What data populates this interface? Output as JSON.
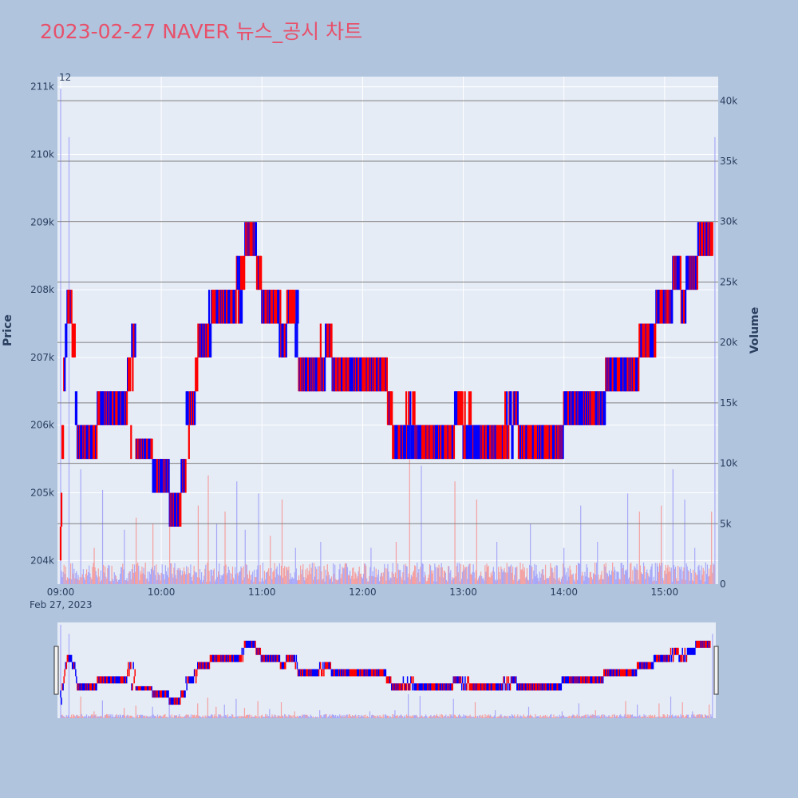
{
  "colors": {
    "background": "#b0c4de",
    "plot_bg": "#e5ecf6",
    "up": "#ff0000",
    "down": "#0000ff",
    "volume_up": "#f4a0a0",
    "volume_down": "#a8a8f8",
    "title": "#e8506a"
  },
  "chart_data": {
    "type": "candlestick",
    "title": "2023-02-27 NAVER 뉴스_공시 차트",
    "ylabel": "Price",
    "y2label": "Volume",
    "x_tick_labels": [
      "09:00",
      "10:00",
      "11:00",
      "12:00",
      "13:00",
      "14:00",
      "15:00"
    ],
    "x_date_label": "Feb 27, 2023",
    "y_tick_labels": [
      "204k",
      "205k",
      "206k",
      "207k",
      "208k",
      "209k",
      "210k",
      "211k"
    ],
    "y2_tick_labels": [
      "0",
      "5k",
      "10k",
      "15k",
      "20k",
      "25k",
      "30k",
      "35k",
      "40k"
    ],
    "ylim": [
      203650,
      211150
    ],
    "y2lim": [
      0,
      42000
    ],
    "news_count_label": "12",
    "price_path": [
      [
        "09:00",
        204000
      ],
      [
        "09:01",
        205500
      ],
      [
        "09:02",
        206000
      ],
      [
        "09:03",
        207000
      ],
      [
        "09:04",
        207500
      ],
      [
        "09:05",
        208000
      ],
      [
        "09:07",
        207500
      ],
      [
        "09:09",
        207000
      ],
      [
        "09:10",
        206000
      ],
      [
        "09:12",
        205500
      ],
      [
        "09:15",
        206000
      ],
      [
        "09:18",
        205500
      ],
      [
        "09:22",
        206000
      ],
      [
        "09:30",
        206500
      ],
      [
        "09:35",
        206000
      ],
      [
        "09:40",
        206500
      ],
      [
        "09:42",
        207500
      ],
      [
        "09:45",
        205500
      ],
      [
        "09:50",
        205800
      ],
      [
        "09:55",
        205500
      ],
      [
        "09:58",
        205000
      ],
      [
        "10:05",
        205000
      ],
      [
        "10:08",
        204500
      ],
      [
        "10:12",
        205000
      ],
      [
        "10:15",
        205500
      ],
      [
        "10:17",
        206500
      ],
      [
        "10:20",
        206000
      ],
      [
        "10:22",
        207000
      ],
      [
        "10:25",
        207500
      ],
      [
        "10:28",
        207000
      ],
      [
        "10:30",
        208000
      ],
      [
        "10:35",
        207500
      ],
      [
        "10:40",
        208000
      ],
      [
        "10:45",
        207500
      ],
      [
        "10:50",
        208500
      ],
      [
        "10:55",
        209000
      ],
      [
        "10:57",
        208500
      ],
      [
        "11:00",
        208000
      ],
      [
        "11:05",
        207500
      ],
      [
        "11:10",
        208000
      ],
      [
        "11:12",
        207000
      ],
      [
        "11:15",
        207500
      ],
      [
        "11:20",
        208000
      ],
      [
        "11:22",
        207000
      ],
      [
        "11:25",
        206500
      ],
      [
        "11:30",
        207000
      ],
      [
        "11:35",
        206500
      ],
      [
        "11:38",
        207500
      ],
      [
        "11:42",
        207000
      ],
      [
        "11:45",
        206500
      ],
      [
        "11:50",
        207000
      ],
      [
        "11:55",
        206500
      ],
      [
        "12:00",
        207000
      ],
      [
        "12:05",
        206500
      ],
      [
        "12:10",
        207000
      ],
      [
        "12:15",
        206500
      ],
      [
        "12:18",
        206000
      ],
      [
        "12:25",
        205500
      ],
      [
        "12:28",
        206500
      ],
      [
        "12:32",
        205500
      ],
      [
        "12:40",
        206000
      ],
      [
        "12:45",
        205500
      ],
      [
        "12:55",
        206000
      ],
      [
        "13:00",
        206500
      ],
      [
        "13:05",
        205500
      ],
      [
        "13:10",
        206000
      ],
      [
        "13:15",
        205500
      ],
      [
        "13:20",
        206000
      ],
      [
        "13:25",
        205500
      ],
      [
        "13:30",
        206500
      ],
      [
        "13:33",
        206000
      ],
      [
        "13:35",
        205500
      ],
      [
        "13:45",
        206000
      ],
      [
        "13:55",
        205500
      ],
      [
        "14:00",
        206000
      ],
      [
        "14:05",
        206500
      ],
      [
        "14:10",
        206000
      ],
      [
        "14:15",
        206500
      ],
      [
        "14:20",
        206000
      ],
      [
        "14:25",
        206500
      ],
      [
        "14:28",
        207000
      ],
      [
        "14:32",
        206500
      ],
      [
        "14:36",
        207000
      ],
      [
        "14:40",
        206500
      ],
      [
        "14:45",
        207000
      ],
      [
        "14:48",
        207500
      ],
      [
        "14:52",
        207000
      ],
      [
        "14:55",
        207500
      ],
      [
        "15:00",
        208000
      ],
      [
        "15:05",
        207500
      ],
      [
        "15:08",
        208500
      ],
      [
        "15:10",
        208000
      ],
      [
        "15:12",
        207500
      ],
      [
        "15:15",
        208500
      ],
      [
        "15:18",
        208000
      ],
      [
        "15:20",
        208500
      ],
      [
        "15:22",
        209000
      ],
      [
        "15:25",
        208500
      ],
      [
        "15:27",
        209000
      ],
      [
        "15:29",
        208500
      ]
    ],
    "volume_spikes": [
      [
        "09:00",
        41000
      ],
      [
        "09:05",
        37000
      ],
      [
        "09:12",
        9500
      ],
      [
        "09:20",
        3000
      ],
      [
        "09:25",
        7800
      ],
      [
        "09:38",
        4500
      ],
      [
        "09:45",
        5500
      ],
      [
        "09:55",
        5000
      ],
      [
        "10:05",
        7000
      ],
      [
        "10:15",
        1500
      ],
      [
        "10:22",
        6500
      ],
      [
        "10:28",
        9000
      ],
      [
        "10:33",
        5000
      ],
      [
        "10:38",
        6000
      ],
      [
        "10:45",
        8500
      ],
      [
        "10:50",
        4500
      ],
      [
        "10:58",
        7500
      ],
      [
        "11:05",
        4000
      ],
      [
        "11:12",
        7000
      ],
      [
        "11:20",
        3000
      ],
      [
        "11:35",
        3500
      ],
      [
        "12:05",
        3000
      ],
      [
        "12:20",
        3500
      ],
      [
        "12:28",
        10500
      ],
      [
        "12:35",
        9800
      ],
      [
        "12:55",
        8500
      ],
      [
        "13:08",
        7000
      ],
      [
        "13:20",
        3500
      ],
      [
        "13:40",
        5000
      ],
      [
        "14:00",
        3000
      ],
      [
        "14:10",
        6500
      ],
      [
        "14:20",
        3500
      ],
      [
        "14:38",
        7500
      ],
      [
        "14:45",
        6000
      ],
      [
        "14:58",
        6500
      ],
      [
        "15:05",
        9500
      ],
      [
        "15:12",
        7000
      ],
      [
        "15:18",
        3000
      ],
      [
        "15:28",
        6000
      ],
      [
        "15:30",
        37000
      ]
    ]
  }
}
